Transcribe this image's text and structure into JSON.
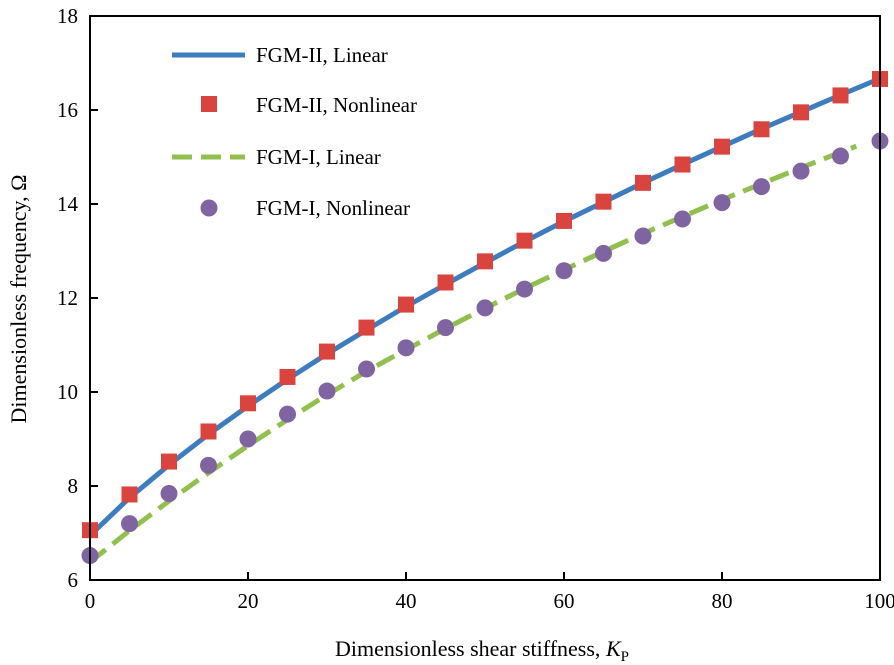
{
  "chart_data": {
    "type": "line",
    "title": "",
    "xlabel": "Dimensionless shear stiffness, ",
    "xlabel_symbol": "K",
    "xlabel_subscript": "P",
    "ylabel": "Dimensionless frequency, Ω",
    "xlim": [
      0,
      100
    ],
    "ylim": [
      6,
      18
    ],
    "xticks": [
      0,
      20,
      40,
      60,
      80,
      100
    ],
    "yticks": [
      6,
      8,
      10,
      12,
      14,
      16,
      18
    ],
    "grid": false,
    "legend_position": "top-left",
    "x": [
      0,
      5,
      10,
      15,
      20,
      25,
      30,
      35,
      40,
      45,
      50,
      55,
      60,
      65,
      70,
      75,
      80,
      85,
      90,
      95,
      100
    ],
    "series": [
      {
        "name": "FGM-II, Linear",
        "style": "solid-line",
        "color": "#3e7cc0",
        "x": [
          0,
          5,
          10,
          15,
          20,
          25,
          30,
          35,
          40,
          45,
          50,
          55,
          60,
          65,
          70,
          75,
          80,
          85,
          90,
          95,
          100
        ],
        "values": [
          6.95,
          7.75,
          8.45,
          9.1,
          9.7,
          10.27,
          10.81,
          11.32,
          11.82,
          12.29,
          12.75,
          13.2,
          13.63,
          14.04,
          14.45,
          14.84,
          15.22,
          15.6,
          15.96,
          16.32,
          16.67
        ]
      },
      {
        "name": "FGM-II, Nonlinear",
        "style": "square-marker",
        "color": "#d9443f",
        "x": [
          0,
          5,
          10,
          15,
          20,
          25,
          30,
          35,
          40,
          45,
          50,
          55,
          60,
          65,
          70,
          75,
          80,
          85,
          90,
          95,
          100
        ],
        "values": [
          7.06,
          7.82,
          8.52,
          9.16,
          9.76,
          10.32,
          10.86,
          11.37,
          11.86,
          12.33,
          12.78,
          13.22,
          13.64,
          14.05,
          14.45,
          14.84,
          15.22,
          15.59,
          15.95,
          16.31,
          16.66
        ]
      },
      {
        "name": "FGM-I, Linear",
        "style": "dashed-line",
        "color": "#92c04e",
        "x": [
          0,
          5,
          10,
          15,
          20,
          25,
          30,
          35,
          40,
          45,
          50,
          55,
          60,
          65,
          70,
          75,
          80,
          85,
          90,
          95,
          97
        ],
        "values": [
          6.38,
          7.05,
          7.68,
          8.28,
          8.86,
          9.41,
          9.94,
          10.44,
          10.9,
          11.35,
          11.78,
          12.2,
          12.6,
          12.99,
          13.37,
          13.73,
          14.09,
          14.43,
          14.77,
          15.1,
          15.23
        ]
      },
      {
        "name": "FGM-I, Nonlinear",
        "style": "circle-marker",
        "color": "#8064a2",
        "x": [
          0,
          5,
          10,
          15,
          20,
          25,
          30,
          35,
          40,
          45,
          50,
          55,
          60,
          65,
          70,
          75,
          80,
          85,
          90,
          95,
          100
        ],
        "values": [
          6.52,
          7.2,
          7.84,
          8.44,
          9.0,
          9.53,
          10.02,
          10.49,
          10.94,
          11.37,
          11.79,
          12.19,
          12.58,
          12.95,
          13.32,
          13.68,
          14.03,
          14.37,
          14.7,
          15.02,
          15.34
        ]
      }
    ]
  }
}
